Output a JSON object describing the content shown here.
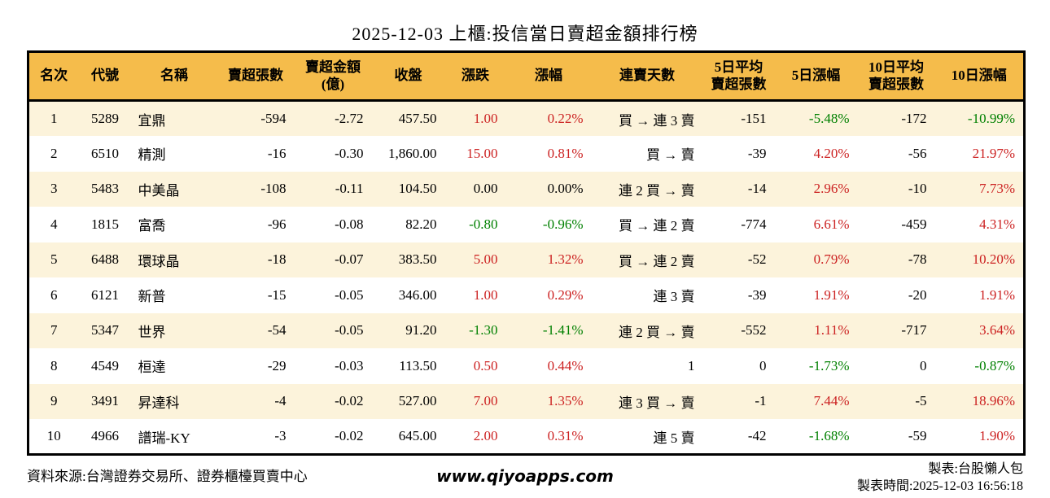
{
  "title": "2025-12-03 上櫃:投信當日賣超金額排行榜",
  "colors": {
    "header_bg": "#f5bc4b",
    "stripe_bg": "#fcf3db",
    "positive_red": "#cc2222",
    "negative_green": "#008000",
    "text": "#000000"
  },
  "table": {
    "headers": [
      {
        "lines": [
          "名次"
        ]
      },
      {
        "lines": [
          "代號"
        ]
      },
      {
        "lines": [
          "名稱"
        ]
      },
      {
        "lines": [
          "賣超張數"
        ]
      },
      {
        "lines": [
          "賣超金額",
          "(億)"
        ]
      },
      {
        "lines": [
          "收盤"
        ]
      },
      {
        "lines": [
          "漲跌"
        ]
      },
      {
        "lines": [
          "漲幅"
        ]
      },
      {
        "lines": [
          "連賣天數"
        ]
      },
      {
        "lines": [
          "5日平均",
          "賣超張數"
        ]
      },
      {
        "lines": [
          "5日漲幅"
        ]
      },
      {
        "lines": [
          "10日平均",
          "賣超張數"
        ]
      },
      {
        "lines": [
          "10日漲幅"
        ]
      }
    ],
    "columns": [
      {
        "key": "rank",
        "name": "rank"
      },
      {
        "key": "code",
        "name": "stock-code"
      },
      {
        "key": "name",
        "name": "stock-name"
      },
      {
        "key": "sell_shares",
        "name": "net-sell-shares"
      },
      {
        "key": "sell_amount",
        "name": "net-sell-amount"
      },
      {
        "key": "close",
        "name": "close-price"
      },
      {
        "key": "change",
        "name": "price-change",
        "dir": "change_dir"
      },
      {
        "key": "change_pct",
        "name": "change-percent",
        "dir": "change_pct_dir"
      },
      {
        "key": "streak",
        "name": "sell-streak"
      },
      {
        "key": "avg5",
        "name": "avg5-net-sell-shares"
      },
      {
        "key": "pct5",
        "name": "change-percent-5d",
        "dir": "pct5_dir"
      },
      {
        "key": "avg10",
        "name": "avg10-net-sell-shares"
      },
      {
        "key": "pct10",
        "name": "change-percent-10d",
        "dir": "pct10_dir"
      }
    ],
    "rows": [
      {
        "rank": "1",
        "code": "5289",
        "name": "宜鼎",
        "sell_shares": "-594",
        "sell_amount": "-2.72",
        "close": "457.50",
        "change": "1.00",
        "change_dir": "up",
        "change_pct": "0.22%",
        "change_pct_dir": "up",
        "streak": "買 → 連 3 賣",
        "avg5": "-151",
        "pct5": "-5.48%",
        "pct5_dir": "down",
        "avg10": "-172",
        "pct10": "-10.99%",
        "pct10_dir": "down"
      },
      {
        "rank": "2",
        "code": "6510",
        "name": "精測",
        "sell_shares": "-16",
        "sell_amount": "-0.30",
        "close": "1,860.00",
        "change": "15.00",
        "change_dir": "up",
        "change_pct": "0.81%",
        "change_pct_dir": "up",
        "streak": "買 → 賣",
        "avg5": "-39",
        "pct5": "4.20%",
        "pct5_dir": "up",
        "avg10": "-56",
        "pct10": "21.97%",
        "pct10_dir": "up"
      },
      {
        "rank": "3",
        "code": "5483",
        "name": "中美晶",
        "sell_shares": "-108",
        "sell_amount": "-0.11",
        "close": "104.50",
        "change": "0.00",
        "change_dir": "flat",
        "change_pct": "0.00%",
        "change_pct_dir": "flat",
        "streak": "連 2 買 → 賣",
        "avg5": "-14",
        "pct5": "2.96%",
        "pct5_dir": "up",
        "avg10": "-10",
        "pct10": "7.73%",
        "pct10_dir": "up"
      },
      {
        "rank": "4",
        "code": "1815",
        "name": "富喬",
        "sell_shares": "-96",
        "sell_amount": "-0.08",
        "close": "82.20",
        "change": "-0.80",
        "change_dir": "down",
        "change_pct": "-0.96%",
        "change_pct_dir": "down",
        "streak": "買 → 連 2 賣",
        "avg5": "-774",
        "pct5": "6.61%",
        "pct5_dir": "up",
        "avg10": "-459",
        "pct10": "4.31%",
        "pct10_dir": "up"
      },
      {
        "rank": "5",
        "code": "6488",
        "name": "環球晶",
        "sell_shares": "-18",
        "sell_amount": "-0.07",
        "close": "383.50",
        "change": "5.00",
        "change_dir": "up",
        "change_pct": "1.32%",
        "change_pct_dir": "up",
        "streak": "買 → 連 2 賣",
        "avg5": "-52",
        "pct5": "0.79%",
        "pct5_dir": "up",
        "avg10": "-78",
        "pct10": "10.20%",
        "pct10_dir": "up"
      },
      {
        "rank": "6",
        "code": "6121",
        "name": "新普",
        "sell_shares": "-15",
        "sell_amount": "-0.05",
        "close": "346.00",
        "change": "1.00",
        "change_dir": "up",
        "change_pct": "0.29%",
        "change_pct_dir": "up",
        "streak": "連 3 賣",
        "avg5": "-39",
        "pct5": "1.91%",
        "pct5_dir": "up",
        "avg10": "-20",
        "pct10": "1.91%",
        "pct10_dir": "up"
      },
      {
        "rank": "7",
        "code": "5347",
        "name": "世界",
        "sell_shares": "-54",
        "sell_amount": "-0.05",
        "close": "91.20",
        "change": "-1.30",
        "change_dir": "down",
        "change_pct": "-1.41%",
        "change_pct_dir": "down",
        "streak": "連 2 買 → 賣",
        "avg5": "-552",
        "pct5": "1.11%",
        "pct5_dir": "up",
        "avg10": "-717",
        "pct10": "3.64%",
        "pct10_dir": "up"
      },
      {
        "rank": "8",
        "code": "4549",
        "name": "桓達",
        "sell_shares": "-29",
        "sell_amount": "-0.03",
        "close": "113.50",
        "change": "0.50",
        "change_dir": "up",
        "change_pct": "0.44%",
        "change_pct_dir": "up",
        "streak": "1",
        "avg5": "0",
        "pct5": "-1.73%",
        "pct5_dir": "down",
        "avg10": "0",
        "pct10": "-0.87%",
        "pct10_dir": "down"
      },
      {
        "rank": "9",
        "code": "3491",
        "name": "昇達科",
        "sell_shares": "-4",
        "sell_amount": "-0.02",
        "close": "527.00",
        "change": "7.00",
        "change_dir": "up",
        "change_pct": "1.35%",
        "change_pct_dir": "up",
        "streak": "連 3 買 → 賣",
        "avg5": "-1",
        "pct5": "7.44%",
        "pct5_dir": "up",
        "avg10": "-5",
        "pct10": "18.96%",
        "pct10_dir": "up"
      },
      {
        "rank": "10",
        "code": "4966",
        "name": "譜瑞-KY",
        "sell_shares": "-3",
        "sell_amount": "-0.02",
        "close": "645.00",
        "change": "2.00",
        "change_dir": "up",
        "change_pct": "0.31%",
        "change_pct_dir": "up",
        "streak": "連 5 賣",
        "avg5": "-42",
        "pct5": "-1.68%",
        "pct5_dir": "down",
        "avg10": "-59",
        "pct10": "1.90%",
        "pct10_dir": "up"
      }
    ]
  },
  "footer": {
    "source": "資料來源:台灣證券交易所、證券櫃檯買賣中心",
    "website": "www.qiyoapps.com",
    "maker": "製表:台股懶人包",
    "time": "製表時間:2025-12-03 16:56:18"
  }
}
